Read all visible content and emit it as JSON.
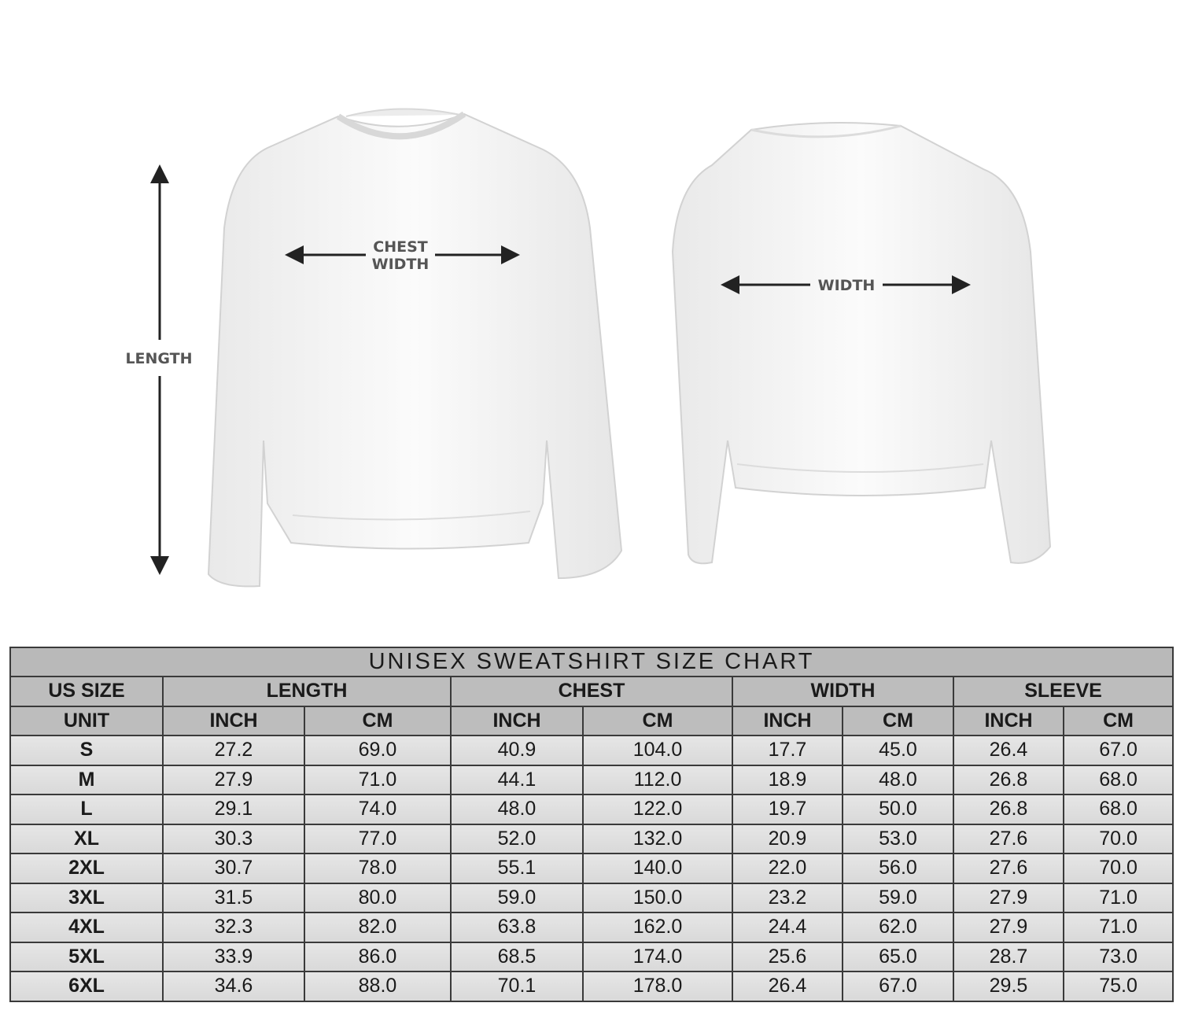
{
  "figure": {
    "length_label": "LENGTH",
    "chest_label_line1": "CHEST",
    "chest_label_line2": "WIDTH",
    "width_label": "WIDTH"
  },
  "table": {
    "title": "UNISEX SWEATSHIRT SIZE CHART",
    "group_headers": [
      "US SIZE",
      "LENGTH",
      "CHEST",
      "WIDTH",
      "SLEEVE"
    ],
    "unit_headers": [
      "UNIT",
      "INCH",
      "CM",
      "INCH",
      "CM",
      "INCH",
      "CM",
      "INCH",
      "CM"
    ],
    "rows": [
      [
        "S",
        "27.2",
        "69.0",
        "40.9",
        "104.0",
        "17.7",
        "45.0",
        "26.4",
        "67.0"
      ],
      [
        "M",
        "27.9",
        "71.0",
        "44.1",
        "112.0",
        "18.9",
        "48.0",
        "26.8",
        "68.0"
      ],
      [
        "L",
        "29.1",
        "74.0",
        "48.0",
        "122.0",
        "19.7",
        "50.0",
        "26.8",
        "68.0"
      ],
      [
        "XL",
        "30.3",
        "77.0",
        "52.0",
        "132.0",
        "20.9",
        "53.0",
        "27.6",
        "70.0"
      ],
      [
        "2XL",
        "30.7",
        "78.0",
        "55.1",
        "140.0",
        "22.0",
        "56.0",
        "27.6",
        "70.0"
      ],
      [
        "3XL",
        "31.5",
        "80.0",
        "59.0",
        "150.0",
        "23.2",
        "59.0",
        "27.9",
        "71.0"
      ],
      [
        "4XL",
        "32.3",
        "82.0",
        "63.8",
        "162.0",
        "24.4",
        "62.0",
        "27.9",
        "71.0"
      ],
      [
        "5XL",
        "33.9",
        "86.0",
        "68.5",
        "174.0",
        "25.6",
        "65.0",
        "28.7",
        "73.0"
      ],
      [
        "6XL",
        "34.6",
        "88.0",
        "70.1",
        "178.0",
        "26.4",
        "67.0",
        "29.5",
        "75.0"
      ]
    ]
  },
  "colors": {
    "header_bg": "#bdbdbd",
    "row_bg": "#e0e0e0",
    "border": "#3a3a3a",
    "arrow": "#222222"
  }
}
